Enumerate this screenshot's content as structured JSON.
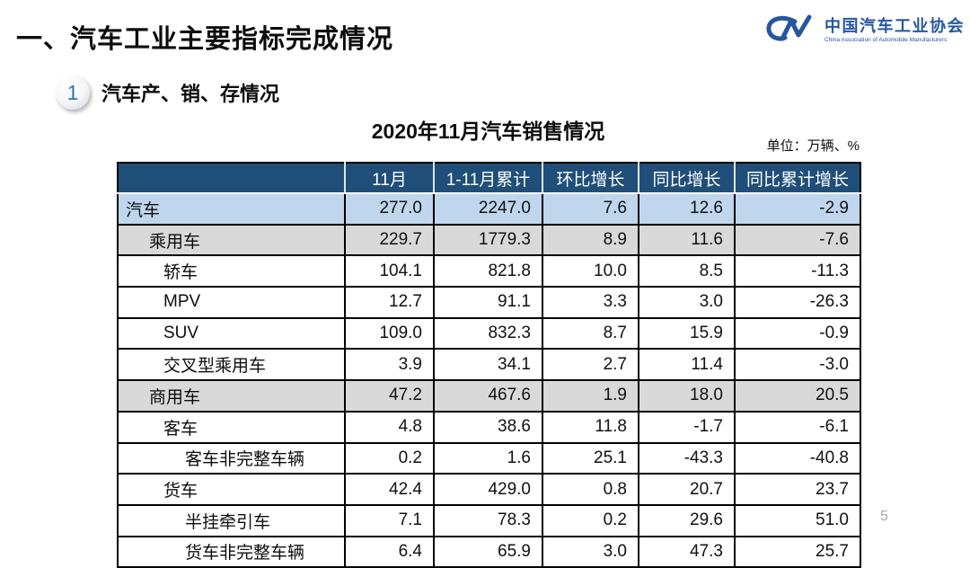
{
  "slide": {
    "main_title": "一、汽车工业主要指标完成情况",
    "page_number": "5"
  },
  "logo": {
    "monogram": "CM",
    "name_cn": "中国汽车工业协会",
    "name_en": "China Association of Automobile Manufacturers",
    "color": "#26579E"
  },
  "section": {
    "number": "1",
    "title": "汽车产、销、存情况"
  },
  "table": {
    "title": "2020年11月汽车销售情况",
    "unit_note": "单位：万辆、%",
    "header_bg": "#1F4E79",
    "highlight_blue": "#BFD6EC",
    "highlight_gray": "#D9D9D9",
    "columns": [
      "",
      "11月",
      "1-11月累计",
      "环比增长",
      "同比增长",
      "同比累计增长"
    ],
    "rows": [
      {
        "label": "汽车",
        "indent": 0,
        "style": "blue",
        "values": [
          "277.0",
          "2247.0",
          "7.6",
          "12.6",
          "-2.9"
        ]
      },
      {
        "label": "乘用车",
        "indent": 1,
        "style": "gray",
        "values": [
          "229.7",
          "1779.3",
          "8.9",
          "11.6",
          "-7.6"
        ]
      },
      {
        "label": "轿车",
        "indent": 2,
        "style": "white",
        "values": [
          "104.1",
          "821.8",
          "10.0",
          "8.5",
          "-11.3"
        ]
      },
      {
        "label": "MPV",
        "indent": 2,
        "style": "white",
        "values": [
          "12.7",
          "91.1",
          "3.3",
          "3.0",
          "-26.3"
        ]
      },
      {
        "label": "SUV",
        "indent": 2,
        "style": "white",
        "values": [
          "109.0",
          "832.3",
          "8.7",
          "15.9",
          "-0.9"
        ]
      },
      {
        "label": "交叉型乘用车",
        "indent": 2,
        "style": "white",
        "values": [
          "3.9",
          "34.1",
          "2.7",
          "11.4",
          "-3.0"
        ]
      },
      {
        "label": "商用车",
        "indent": 1,
        "style": "gray",
        "values": [
          "47.2",
          "467.6",
          "1.9",
          "18.0",
          "20.5"
        ]
      },
      {
        "label": "客车",
        "indent": 2,
        "style": "white",
        "values": [
          "4.8",
          "38.6",
          "11.8",
          "-1.7",
          "-6.1"
        ]
      },
      {
        "label": "客车非完整车辆",
        "indent": 3,
        "style": "white",
        "values": [
          "0.2",
          "1.6",
          "25.1",
          "-43.3",
          "-40.8"
        ]
      },
      {
        "label": "货车",
        "indent": 2,
        "style": "white",
        "values": [
          "42.4",
          "429.0",
          "0.8",
          "20.7",
          "23.7"
        ]
      },
      {
        "label": "半挂牵引车",
        "indent": 3,
        "style": "white",
        "values": [
          "7.1",
          "78.3",
          "0.2",
          "29.6",
          "51.0"
        ]
      },
      {
        "label": "货车非完整车辆",
        "indent": 3,
        "style": "white",
        "values": [
          "6.4",
          "65.9",
          "3.0",
          "47.3",
          "25.7"
        ]
      }
    ]
  }
}
